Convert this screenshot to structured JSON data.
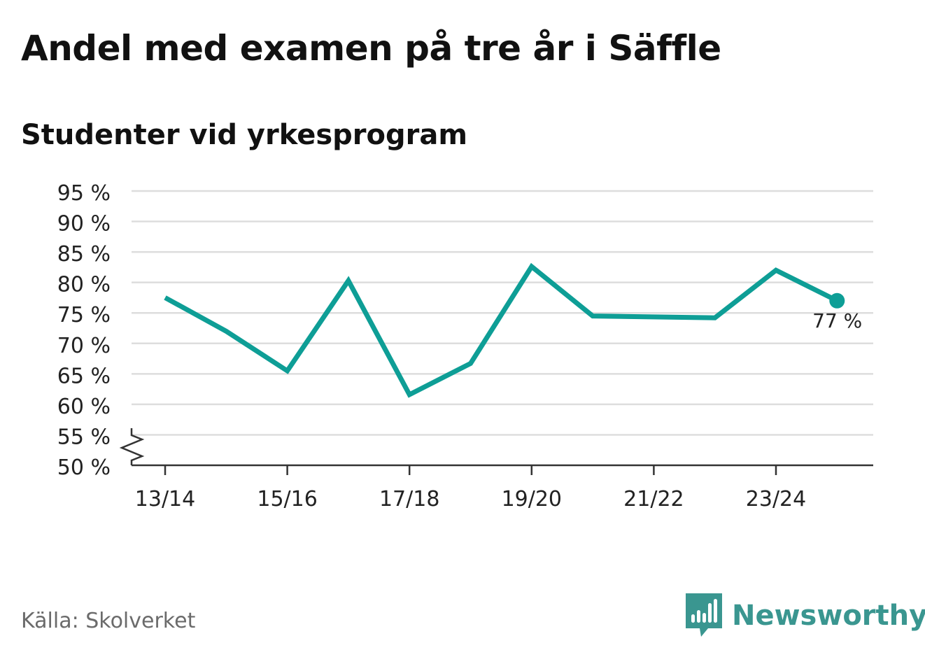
{
  "header": {
    "title": "Andel med examen på tre år i Säffle",
    "subtitle": "Studenter vid yrkesprogram"
  },
  "footer": {
    "source": "Källa: Skolverket",
    "brand": "Newsworthy"
  },
  "colors": {
    "line": "#0e9e96",
    "brand": "#3a9690",
    "grid": "#dddddd",
    "axis": "#333333",
    "text": "#222222"
  },
  "chart_data": {
    "type": "line",
    "title": "Andel med examen på tre år i Säffle",
    "subtitle": "Studenter vid yrkesprogram",
    "xlabel": "",
    "ylabel": "",
    "ylim": [
      50,
      95
    ],
    "yticks": [
      50,
      55,
      60,
      65,
      70,
      75,
      80,
      85,
      90,
      95
    ],
    "ytick_labels": [
      "50 %",
      "55 %",
      "60 %",
      "65 %",
      "70 %",
      "75 %",
      "80 %",
      "85 %",
      "90 %",
      "95 %"
    ],
    "axis_break": true,
    "grid": true,
    "x": [
      "13/14",
      "14/15",
      "15/16",
      "16/17",
      "17/18",
      "18/19",
      "19/20",
      "20/21",
      "21/22",
      "22/23",
      "23/24",
      "24/25"
    ],
    "xtick_labels": [
      "13/14",
      "15/16",
      "17/18",
      "19/20",
      "21/22",
      "23/24"
    ],
    "series": [
      {
        "name": "Studenter vid yrkesprogram",
        "values": [
          77.5,
          72,
          65.5,
          80.3,
          61.6,
          66.7,
          82.6,
          74.5,
          null,
          74.2,
          82,
          77
        ]
      }
    ],
    "annotations": [
      {
        "x": "24/25",
        "value": 77,
        "label": "77 %"
      }
    ]
  }
}
